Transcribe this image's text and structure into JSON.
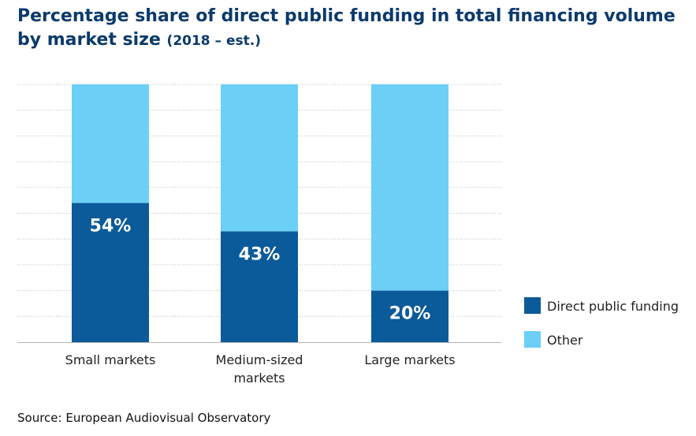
{
  "chart_data": {
    "type": "bar",
    "stacked": true,
    "percent_stacked": true,
    "title": "Percentage share of direct public funding in total financing volume by market size",
    "subtitle": "(2018 – est.)",
    "categories": [
      "Small markets",
      "Medium-sized markets",
      "Large markets"
    ],
    "category_lines": [
      [
        "Small markets"
      ],
      [
        "Medium-sized",
        "markets"
      ],
      [
        "Large markets"
      ]
    ],
    "series": [
      {
        "name": "Direct public funding",
        "values": [
          54,
          43,
          20
        ],
        "color": "#0b5a9a",
        "labels": [
          "54%",
          "43%",
          "20%"
        ]
      },
      {
        "name": "Other",
        "values": [
          46,
          57,
          80
        ],
        "color": "#6ccff6"
      }
    ],
    "ylim": [
      0,
      100
    ],
    "xlabel": "",
    "ylabel": "",
    "grid": true,
    "legend_position": "right"
  },
  "source": "Source: European Audiovisual Observatory"
}
